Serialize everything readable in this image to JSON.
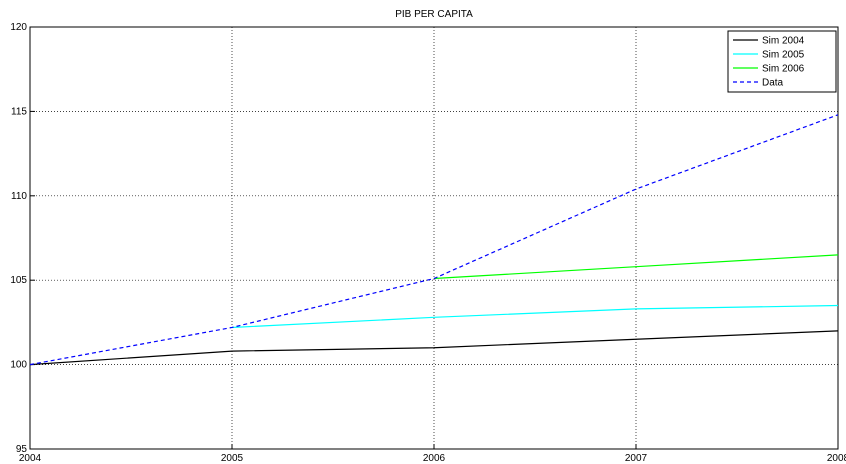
{
  "chart_data": {
    "type": "line",
    "title": "PIB PER CAPITA",
    "x": [
      2004,
      2005,
      2006,
      2007,
      2008
    ],
    "series": [
      {
        "name": "Sim 2004",
        "color": "#000000",
        "dashed": false,
        "values": [
          100,
          100.8,
          101.0,
          101.5,
          102.0
        ]
      },
      {
        "name": "Sim 2005",
        "color": "#00ffff",
        "dashed": false,
        "values": [
          null,
          102.2,
          102.8,
          103.3,
          103.5
        ]
      },
      {
        "name": "Sim 2006",
        "color": "#00ff00",
        "dashed": false,
        "values": [
          null,
          null,
          105.1,
          105.8,
          106.5
        ]
      },
      {
        "name": "Data",
        "color": "#0000ff",
        "dashed": true,
        "values": [
          100,
          102.2,
          105.1,
          110.4,
          114.8
        ]
      }
    ],
    "xlim": [
      2004,
      2008
    ],
    "xticks": [
      2004,
      2005,
      2006,
      2007,
      2008
    ],
    "ylim": [
      95,
      120
    ],
    "yticks": [
      95,
      100,
      105,
      110,
      115,
      120
    ],
    "grid": true,
    "legend": "top-right"
  }
}
